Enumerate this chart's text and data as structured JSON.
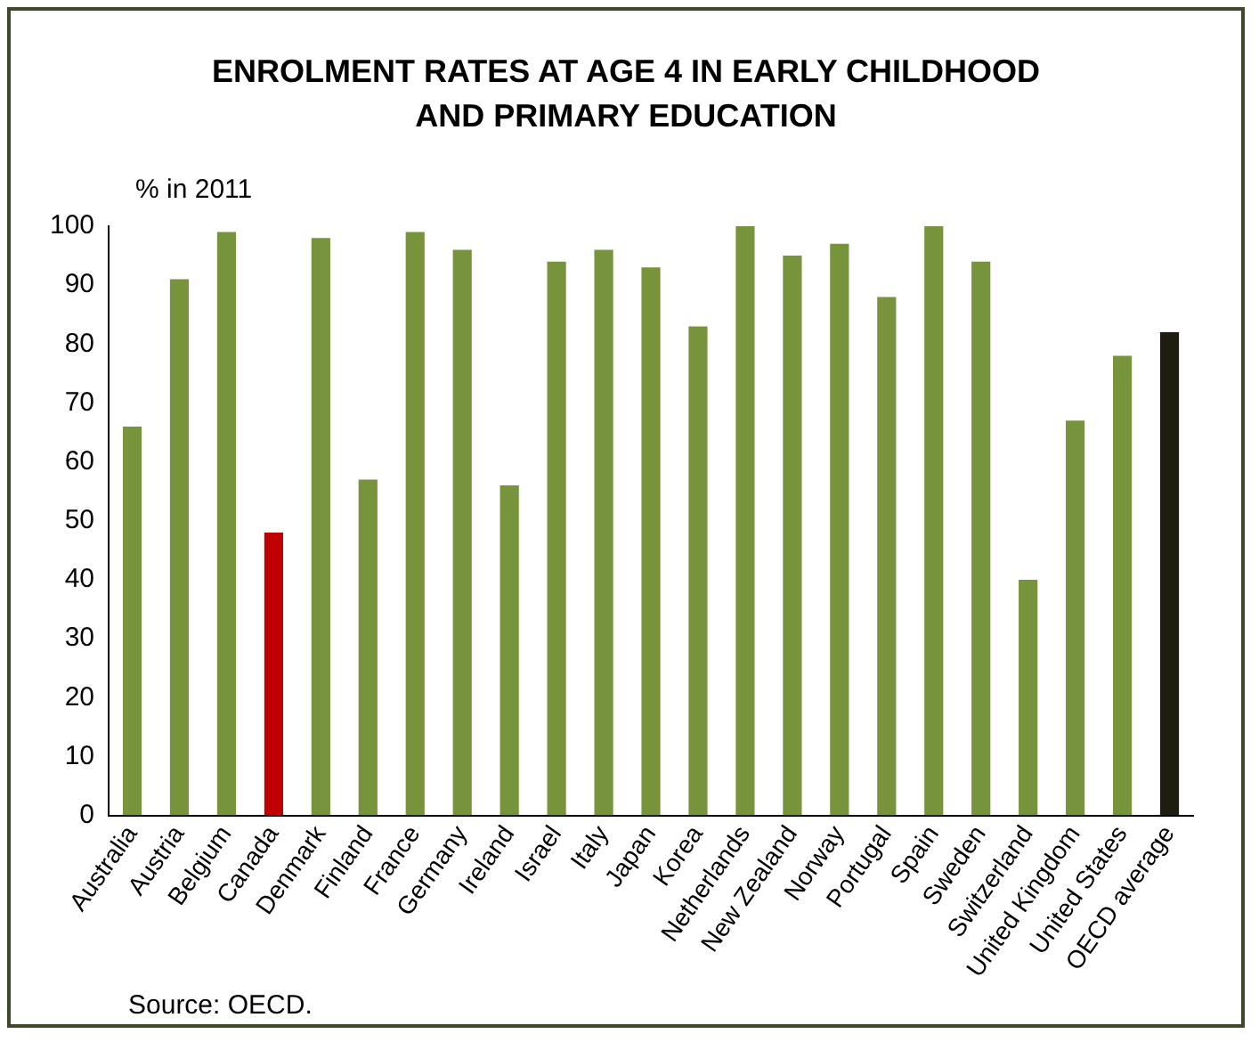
{
  "chart_data": {
    "type": "bar",
    "title": "ENROLMENT RATES AT AGE 4 IN EARLY CHILDHOOD AND PRIMARY  EDUCATION",
    "ylabel": "% in 2011",
    "categories": [
      "Australia",
      "Austria",
      "Belgium",
      "Canada",
      "Denmark",
      "Finland",
      "France",
      "Germany",
      "Ireland",
      "Israel",
      "Italy",
      "Japan",
      "Korea",
      "Netherlands",
      "New Zealand",
      "Norway",
      "Portugal",
      "Spain",
      "Sweden",
      "Switzerland",
      "United Kingdom",
      "United States",
      "OECD average"
    ],
    "values": [
      66,
      91,
      99,
      48,
      98,
      57,
      99,
      96,
      56,
      94,
      96,
      93,
      83,
      100,
      95,
      97,
      88,
      100,
      94,
      40,
      67,
      78,
      82
    ],
    "colors": [
      "#77933c",
      "#77933c",
      "#77933c",
      "#c00000",
      "#77933c",
      "#77933c",
      "#77933c",
      "#77933c",
      "#77933c",
      "#77933c",
      "#77933c",
      "#77933c",
      "#77933c",
      "#77933c",
      "#77933c",
      "#77933c",
      "#77933c",
      "#77933c",
      "#77933c",
      "#77933c",
      "#77933c",
      "#77933c",
      "#1f1d10"
    ],
    "ylim": [
      0,
      100
    ],
    "yticks": [
      0,
      10,
      20,
      30,
      40,
      50,
      60,
      70,
      80,
      90,
      100
    ],
    "grid": false,
    "legend": false,
    "annotations": [
      "Source: OECD."
    ]
  }
}
